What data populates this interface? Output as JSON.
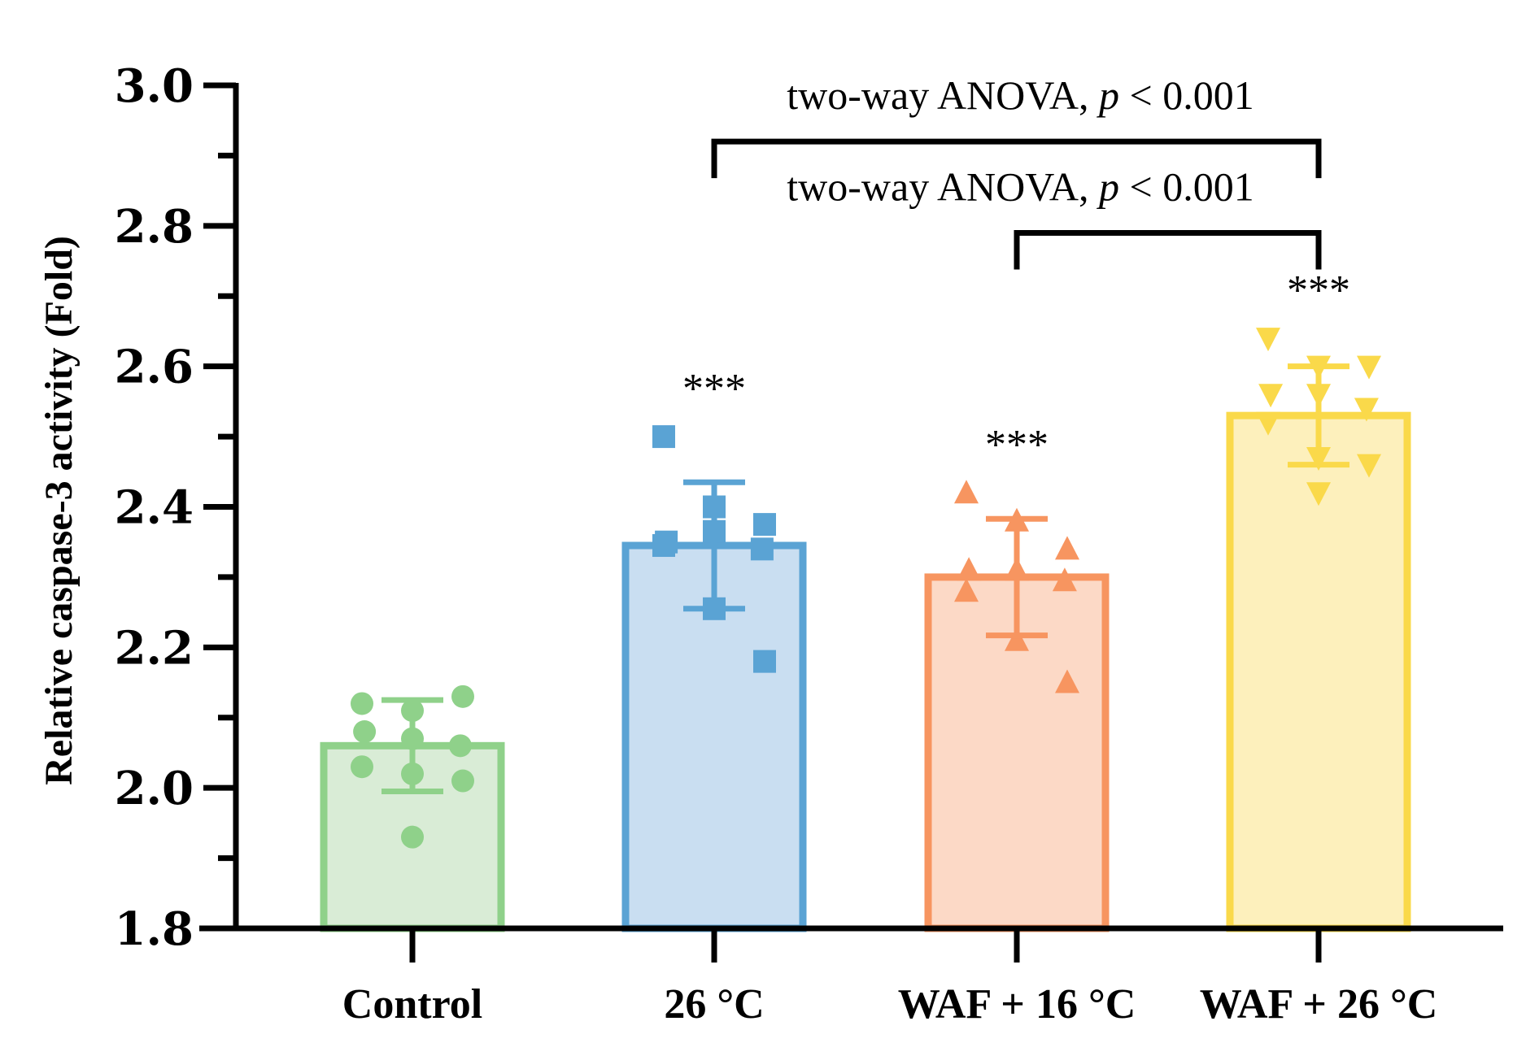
{
  "chart_data": {
    "type": "bar",
    "ylabel": "Relative caspase-3 activity (Fold)",
    "xlabel": "",
    "ylim": [
      1.8,
      3.0
    ],
    "yticks": [
      "1.8",
      "2.0",
      "2.2",
      "2.4",
      "2.6",
      "2.8",
      "3.0"
    ],
    "categories": [
      "Control",
      "26 °C",
      "WAF + 16 °C",
      "WAF + 26 °C"
    ],
    "series": [
      {
        "name": "Control",
        "mean": 2.06,
        "sd": 0.065,
        "marker": "circle",
        "fill": "#d9ecd6",
        "stroke": "#8fd18a",
        "points": [
          2.12,
          2.11,
          2.13,
          2.08,
          2.07,
          2.06,
          2.03,
          2.02,
          2.01,
          1.93
        ],
        "significance": ""
      },
      {
        "name": "26 °C",
        "mean": 2.345,
        "sd": 0.09,
        "marker": "square",
        "fill": "#c9def1",
        "stroke": "#5aa3d4",
        "points": [
          2.5,
          2.4,
          2.375,
          2.35,
          2.365,
          2.34,
          2.345,
          2.255,
          2.18
        ],
        "significance": "***"
      },
      {
        "name": "WAF + 16 °C",
        "mean": 2.3,
        "sd": 0.083,
        "marker": "triangle-up",
        "fill": "#fcd9c6",
        "stroke": "#f79560",
        "points": [
          2.42,
          2.38,
          2.34,
          2.31,
          2.31,
          2.295,
          2.28,
          2.21,
          2.15
        ],
        "significance": "***"
      },
      {
        "name": "WAF + 26 °C",
        "mean": 2.53,
        "sd": 0.07,
        "marker": "triangle-down",
        "fill": "#fdf0bc",
        "stroke": "#fad94a",
        "points": [
          2.64,
          2.6,
          2.6,
          2.56,
          2.56,
          2.54,
          2.52,
          2.47,
          2.46,
          2.42
        ],
        "significance": "***"
      }
    ],
    "comparisons": [
      {
        "from": "26 °C",
        "to": "WAF + 26 °C",
        "y": 2.92,
        "label_main": "two-way ANOVA, ",
        "label_p": "p",
        "label_rest": " < 0.001"
      },
      {
        "from": "WAF + 16 °C",
        "to": "WAF + 26 °C",
        "y": 2.79,
        "label_main": "two-way ANOVA, ",
        "label_p": "p",
        "label_rest": " < 0.001"
      }
    ]
  }
}
